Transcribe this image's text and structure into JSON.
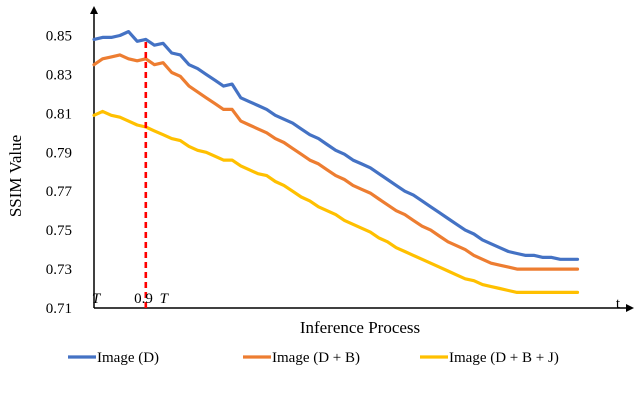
{
  "chart_data": {
    "type": "line",
    "title": "",
    "xlabel": "Inference Process",
    "ylabel": "SSIM Value",
    "ylim": [
      0.71,
      0.86
    ],
    "yticks": [
      "0.71",
      "0.73",
      "0.75",
      "0.77",
      "0.79",
      "0.81",
      "0.83",
      "0.85"
    ],
    "x_range": [
      0,
      60
    ],
    "xtick_labels": {
      "start": "T",
      "marker_number": "0.9",
      "marker_T": "T",
      "end": "t"
    },
    "marker_x": 6,
    "marker_color": "#ff0000",
    "grid": false,
    "legend_position": "bottom",
    "series": [
      {
        "name": "Image (D)",
        "color": "#4472c4",
        "values": [
          0.848,
          0.849,
          0.849,
          0.85,
          0.852,
          0.847,
          0.848,
          0.845,
          0.846,
          0.841,
          0.84,
          0.835,
          0.833,
          0.83,
          0.827,
          0.824,
          0.825,
          0.818,
          0.816,
          0.814,
          0.812,
          0.809,
          0.807,
          0.805,
          0.802,
          0.799,
          0.797,
          0.794,
          0.791,
          0.789,
          0.786,
          0.784,
          0.782,
          0.779,
          0.776,
          0.773,
          0.77,
          0.768,
          0.765,
          0.762,
          0.759,
          0.756,
          0.753,
          0.75,
          0.748,
          0.745,
          0.743,
          0.741,
          0.739,
          0.738,
          0.737,
          0.737,
          0.736,
          0.736,
          0.735,
          0.735,
          0.735
        ]
      },
      {
        "name": "Image (D + B)",
        "color": "#ed7d31",
        "values": [
          0.835,
          0.838,
          0.839,
          0.84,
          0.838,
          0.837,
          0.838,
          0.835,
          0.836,
          0.831,
          0.829,
          0.824,
          0.821,
          0.818,
          0.815,
          0.812,
          0.812,
          0.806,
          0.804,
          0.802,
          0.8,
          0.797,
          0.795,
          0.792,
          0.789,
          0.786,
          0.784,
          0.781,
          0.778,
          0.776,
          0.773,
          0.771,
          0.769,
          0.766,
          0.763,
          0.76,
          0.758,
          0.755,
          0.752,
          0.75,
          0.747,
          0.744,
          0.742,
          0.74,
          0.737,
          0.735,
          0.733,
          0.732,
          0.731,
          0.73,
          0.73,
          0.73,
          0.73,
          0.73,
          0.73,
          0.73,
          0.73
        ]
      },
      {
        "name": "Image (D + B + J)",
        "color": "#ffc000",
        "values": [
          0.809,
          0.811,
          0.809,
          0.808,
          0.806,
          0.804,
          0.803,
          0.801,
          0.799,
          0.797,
          0.796,
          0.793,
          0.791,
          0.79,
          0.788,
          0.786,
          0.786,
          0.783,
          0.781,
          0.779,
          0.778,
          0.775,
          0.773,
          0.77,
          0.767,
          0.765,
          0.762,
          0.76,
          0.758,
          0.755,
          0.753,
          0.751,
          0.749,
          0.746,
          0.744,
          0.741,
          0.739,
          0.737,
          0.735,
          0.733,
          0.731,
          0.729,
          0.727,
          0.725,
          0.724,
          0.722,
          0.721,
          0.72,
          0.719,
          0.718,
          0.718,
          0.718,
          0.718,
          0.718,
          0.718,
          0.718,
          0.718
        ]
      }
    ]
  }
}
